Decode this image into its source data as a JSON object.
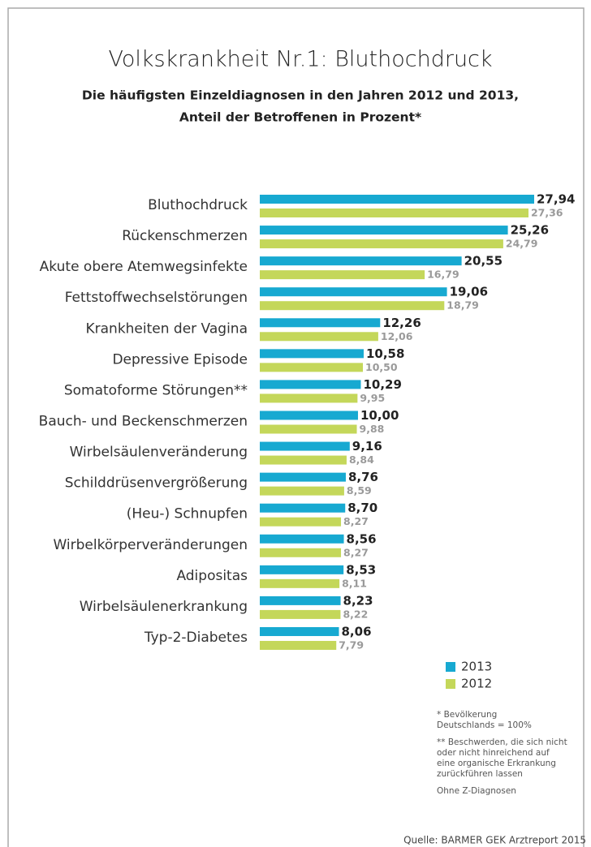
{
  "chart_data": {
    "type": "hbar",
    "title": "Volkskrankheit Nr.1: Bluthochdruck",
    "subtitle": [
      "Die häufigsten Einzeldiagnosen in den Jahren 2012 und 2013,",
      "Anteil der Betroffenen in Prozent*"
    ],
    "categories": [
      "Bluthochdruck",
      "Rückenschmerzen",
      "Akute obere Atemwegsinfekte",
      "Fettstoffwechselstörungen",
      "Krankheiten der Vagina",
      "Depressive Episode",
      "Somatoforme Störungen**",
      "Bauch- und Beckenschmerzen",
      "Wirbelsäulenveränderung",
      "Schilddrüsenvergrößerung",
      "(Heu-) Schnupfen",
      "Wirbelkörperveränderungen",
      "Adipositas",
      "Wirbelsäulenerkrankung",
      "Typ-2-Diabetes"
    ],
    "series": [
      {
        "name": "2013",
        "color": "#17a9d1",
        "values": [
          27.94,
          25.26,
          20.55,
          19.06,
          12.26,
          10.58,
          10.29,
          10.0,
          9.16,
          8.76,
          8.7,
          8.56,
          8.53,
          8.23,
          8.06
        ],
        "value_labels": [
          "27,94",
          "25,26",
          "20,55",
          "19,06",
          "12,26",
          "10,58",
          "10,29",
          "10,00",
          "9,16",
          "8,76",
          "8,70",
          "8,56",
          "8,53",
          "8,23",
          "8,06"
        ]
      },
      {
        "name": "2012",
        "color": "#c4d75a",
        "values": [
          27.36,
          24.79,
          16.79,
          18.79,
          12.06,
          10.5,
          9.95,
          9.88,
          8.84,
          8.59,
          8.27,
          8.27,
          8.11,
          8.22,
          7.79
        ],
        "value_labels": [
          "27,36",
          "24,79",
          "16,79",
          "18,79",
          "12,06",
          "10,50",
          "9,95",
          "9,88",
          "8,84",
          "8,59",
          "8,27",
          "8,27",
          "8,11",
          "8,22",
          "7,79"
        ]
      }
    ],
    "notes": [
      [
        "* Bevölkerung",
        "Deutschlands = 100%"
      ],
      [
        "** Beschwerden, die sich nicht",
        "oder nicht hinreichend auf",
        "eine organische Erkrankung",
        "zurückführen lassen"
      ],
      [
        "Ohne Z-Diagnosen"
      ]
    ],
    "source": "Quelle: BARMER GEK Arztreport 2015"
  }
}
